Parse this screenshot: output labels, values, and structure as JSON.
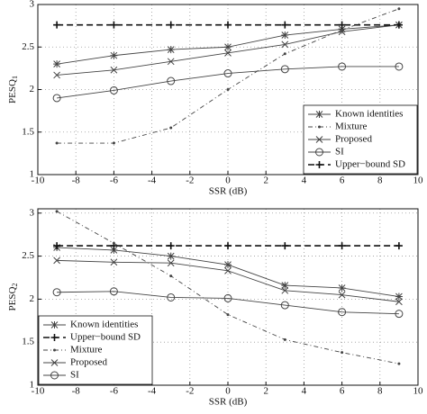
{
  "chart_data": [
    {
      "type": "line",
      "xlabel": "SSR (dB)",
      "ylabel": "PESQ",
      "ylabel_sub": "1",
      "x": [
        -9,
        -6,
        -3,
        0,
        3,
        6,
        9
      ],
      "xlim": [
        -10,
        10
      ],
      "xticks": [
        -10,
        -8,
        -6,
        -4,
        -2,
        0,
        2,
        4,
        6,
        8,
        10
      ],
      "ylim": [
        1,
        3
      ],
      "yticks": [
        1,
        1.5,
        2,
        2.5,
        3
      ],
      "grid": true,
      "legend": "lower right",
      "series": [
        {
          "name": "Known identities",
          "color": "#444444",
          "marker": "asterisk",
          "line_style": "solid",
          "values": [
            2.3,
            2.4,
            2.47,
            2.5,
            2.64,
            2.71,
            2.76
          ]
        },
        {
          "name": "Mixture",
          "color": "#444444",
          "marker": "dot",
          "line_style": "dash-dot",
          "values": [
            1.37,
            1.37,
            1.55,
            2.0,
            2.42,
            2.7,
            2.95
          ]
        },
        {
          "name": "Proposed",
          "color": "#444444",
          "marker": "x",
          "line_style": "solid",
          "values": [
            2.17,
            2.23,
            2.33,
            2.43,
            2.53,
            2.68,
            2.76
          ]
        },
        {
          "name": "SI",
          "color": "#444444",
          "marker": "circle",
          "line_style": "solid",
          "values": [
            1.9,
            1.99,
            2.1,
            2.19,
            2.24,
            2.27,
            2.27
          ]
        },
        {
          "name": "Upper−bound SD",
          "color": "#111111",
          "marker": "plus",
          "line_style": "dashed",
          "values": [
            2.76,
            2.76,
            2.76,
            2.76,
            2.76,
            2.76,
            2.76
          ]
        }
      ]
    },
    {
      "type": "line",
      "xlabel": "SSR (dB)",
      "ylabel": "PESQ",
      "ylabel_sub": "2",
      "x": [
        -9,
        -6,
        -3,
        0,
        3,
        6,
        9
      ],
      "xlim": [
        -10,
        10
      ],
      "xticks": [
        -10,
        -8,
        -6,
        -4,
        -2,
        0,
        2,
        4,
        6,
        8,
        10
      ],
      "ylim": [
        1,
        3.05
      ],
      "yticks": [
        1,
        1.5,
        2,
        2.5,
        3
      ],
      "grid": true,
      "legend": "lower left",
      "series": [
        {
          "name": "Known identities",
          "color": "#444444",
          "marker": "asterisk",
          "line_style": "solid",
          "values": [
            2.6,
            2.57,
            2.5,
            2.4,
            2.16,
            2.13,
            2.03
          ]
        },
        {
          "name": "Upper−bound SD",
          "color": "#111111",
          "marker": "plus",
          "line_style": "dashed",
          "values": [
            2.62,
            2.62,
            2.62,
            2.62,
            2.62,
            2.62,
            2.62
          ]
        },
        {
          "name": "Mixture",
          "color": "#444444",
          "marker": "dot",
          "line_style": "dash-dot",
          "values": [
            3.02,
            2.65,
            2.27,
            1.82,
            1.53,
            1.38,
            1.25
          ]
        },
        {
          "name": "Proposed",
          "color": "#444444",
          "marker": "x",
          "line_style": "solid",
          "values": [
            2.45,
            2.43,
            2.42,
            2.33,
            2.1,
            2.05,
            1.97
          ]
        },
        {
          "name": "SI",
          "color": "#444444",
          "marker": "circle",
          "line_style": "solid",
          "values": [
            2.08,
            2.09,
            2.02,
            2.01,
            1.93,
            1.85,
            1.83
          ]
        }
      ]
    }
  ]
}
